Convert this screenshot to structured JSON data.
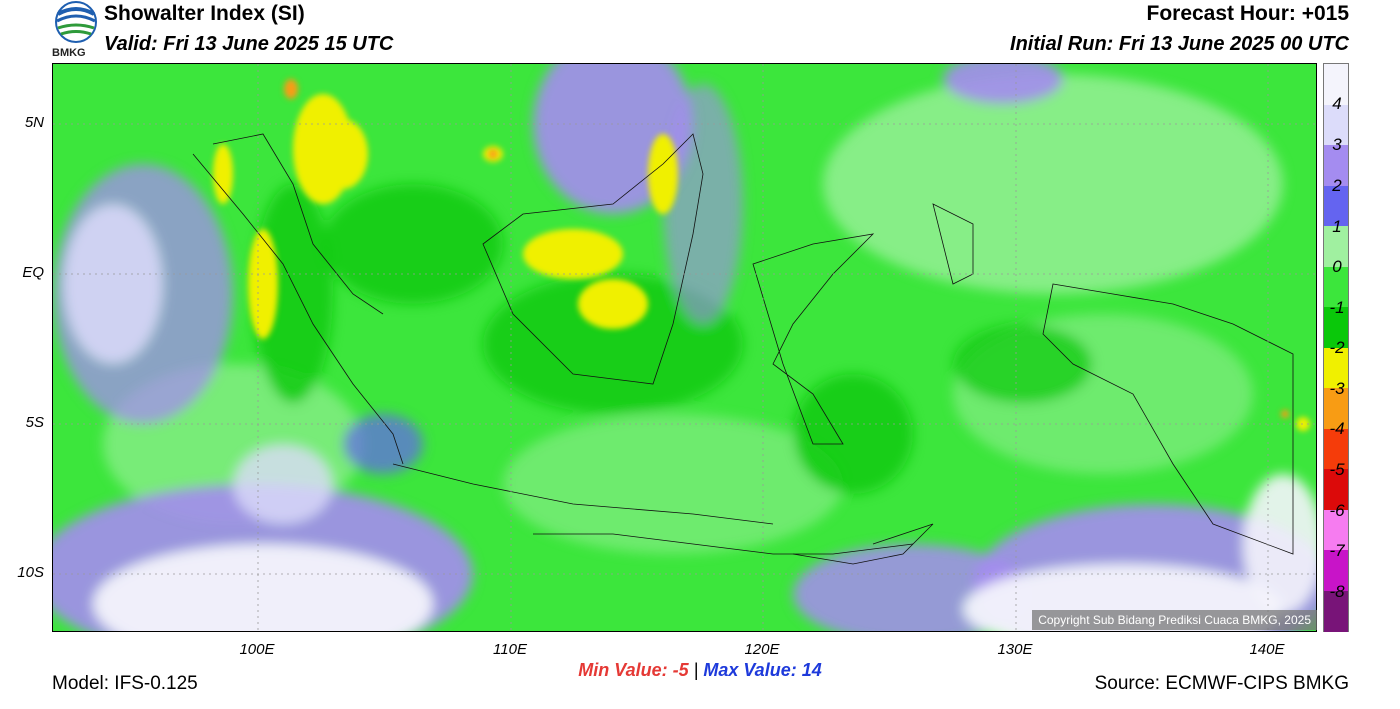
{
  "header": {
    "title": "Showalter Index (SI)",
    "valid": "Valid: Fri 13 June 2025 15 UTC",
    "forecast_hour": "Forecast Hour: +015",
    "initial_run": "Initial Run: Fri 13 June 2025 00 UTC",
    "logo_text": "BMKG"
  },
  "axes": {
    "y_ticks": [
      "5N",
      "EQ",
      "5S",
      "10S"
    ],
    "x_ticks": [
      "100E",
      "110E",
      "120E",
      "130E",
      "140E"
    ]
  },
  "colorbar": {
    "labels": [
      "4",
      "3",
      "2",
      "1",
      "0",
      "-1",
      "-2",
      "-3",
      "-4",
      "-5",
      "-6",
      "-7",
      "-8"
    ],
    "colors": [
      "#f4f4fc",
      "#dcdcfa",
      "#a48cf0",
      "#6464f0",
      "#a0f0a0",
      "#3ce63c",
      "#0ac80a",
      "#f0f000",
      "#f89c14",
      "#f53c0a",
      "#dc0a0a",
      "#f67cf0",
      "#c814c8",
      "#781478"
    ]
  },
  "stats": {
    "min_label": "Min Value:",
    "min_value": "-5",
    "separator": "|",
    "max_label": "Max Value:",
    "max_value": "14"
  },
  "footer": {
    "model": "Model: IFS-0.125",
    "source": "Source: ECMWF-CIPS BMKG",
    "copyright": "Copyright Sub Bidang Prediksi Cuaca BMKG, 2025"
  }
}
